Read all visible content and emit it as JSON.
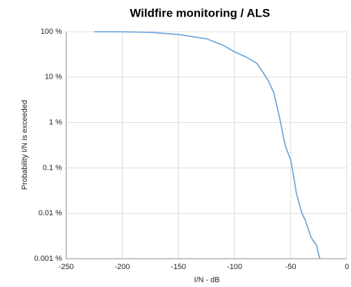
{
  "chart_data": {
    "type": "line",
    "title": "Wildfire monitoring / ALS",
    "x_label": "I/N - dB",
    "y_label": "Probability I/N is exceeded",
    "log_y": true,
    "grid": true,
    "color": "#6fa8dc",
    "x": [
      -225,
      -200,
      -175,
      -150,
      -125,
      -110,
      -100,
      -90,
      -80,
      -75,
      -70,
      -65,
      -60,
      -55,
      -52,
      -50,
      -47,
      -45,
      -42,
      -40,
      -37,
      -35,
      -32,
      -30,
      -27,
      -25,
      -24
    ],
    "values": [
      100,
      99.5,
      97,
      87,
      70,
      50,
      36,
      28,
      20,
      13,
      8.3,
      4.5,
      1.3,
      0.32,
      0.2,
      0.15,
      0.057,
      0.028,
      0.015,
      0.01,
      0.007,
      0.005,
      0.003,
      0.0025,
      0.002,
      0.0012,
      0.001
    ],
    "xlim": [
      -250,
      0
    ],
    "xticks": [
      -250,
      -200,
      -150,
      -100,
      -50,
      0
    ],
    "ylim": [
      0.001,
      100
    ],
    "yticks": [
      {
        "value": 0.001,
        "label": "0.001 %"
      },
      {
        "value": 0.01,
        "label": "0.01 %"
      },
      {
        "value": 0.1,
        "label": "0.1 %"
      },
      {
        "value": 1,
        "label": "1 %"
      },
      {
        "value": 10,
        "label": "10 %"
      },
      {
        "value": 100,
        "label": "100 %"
      }
    ]
  }
}
